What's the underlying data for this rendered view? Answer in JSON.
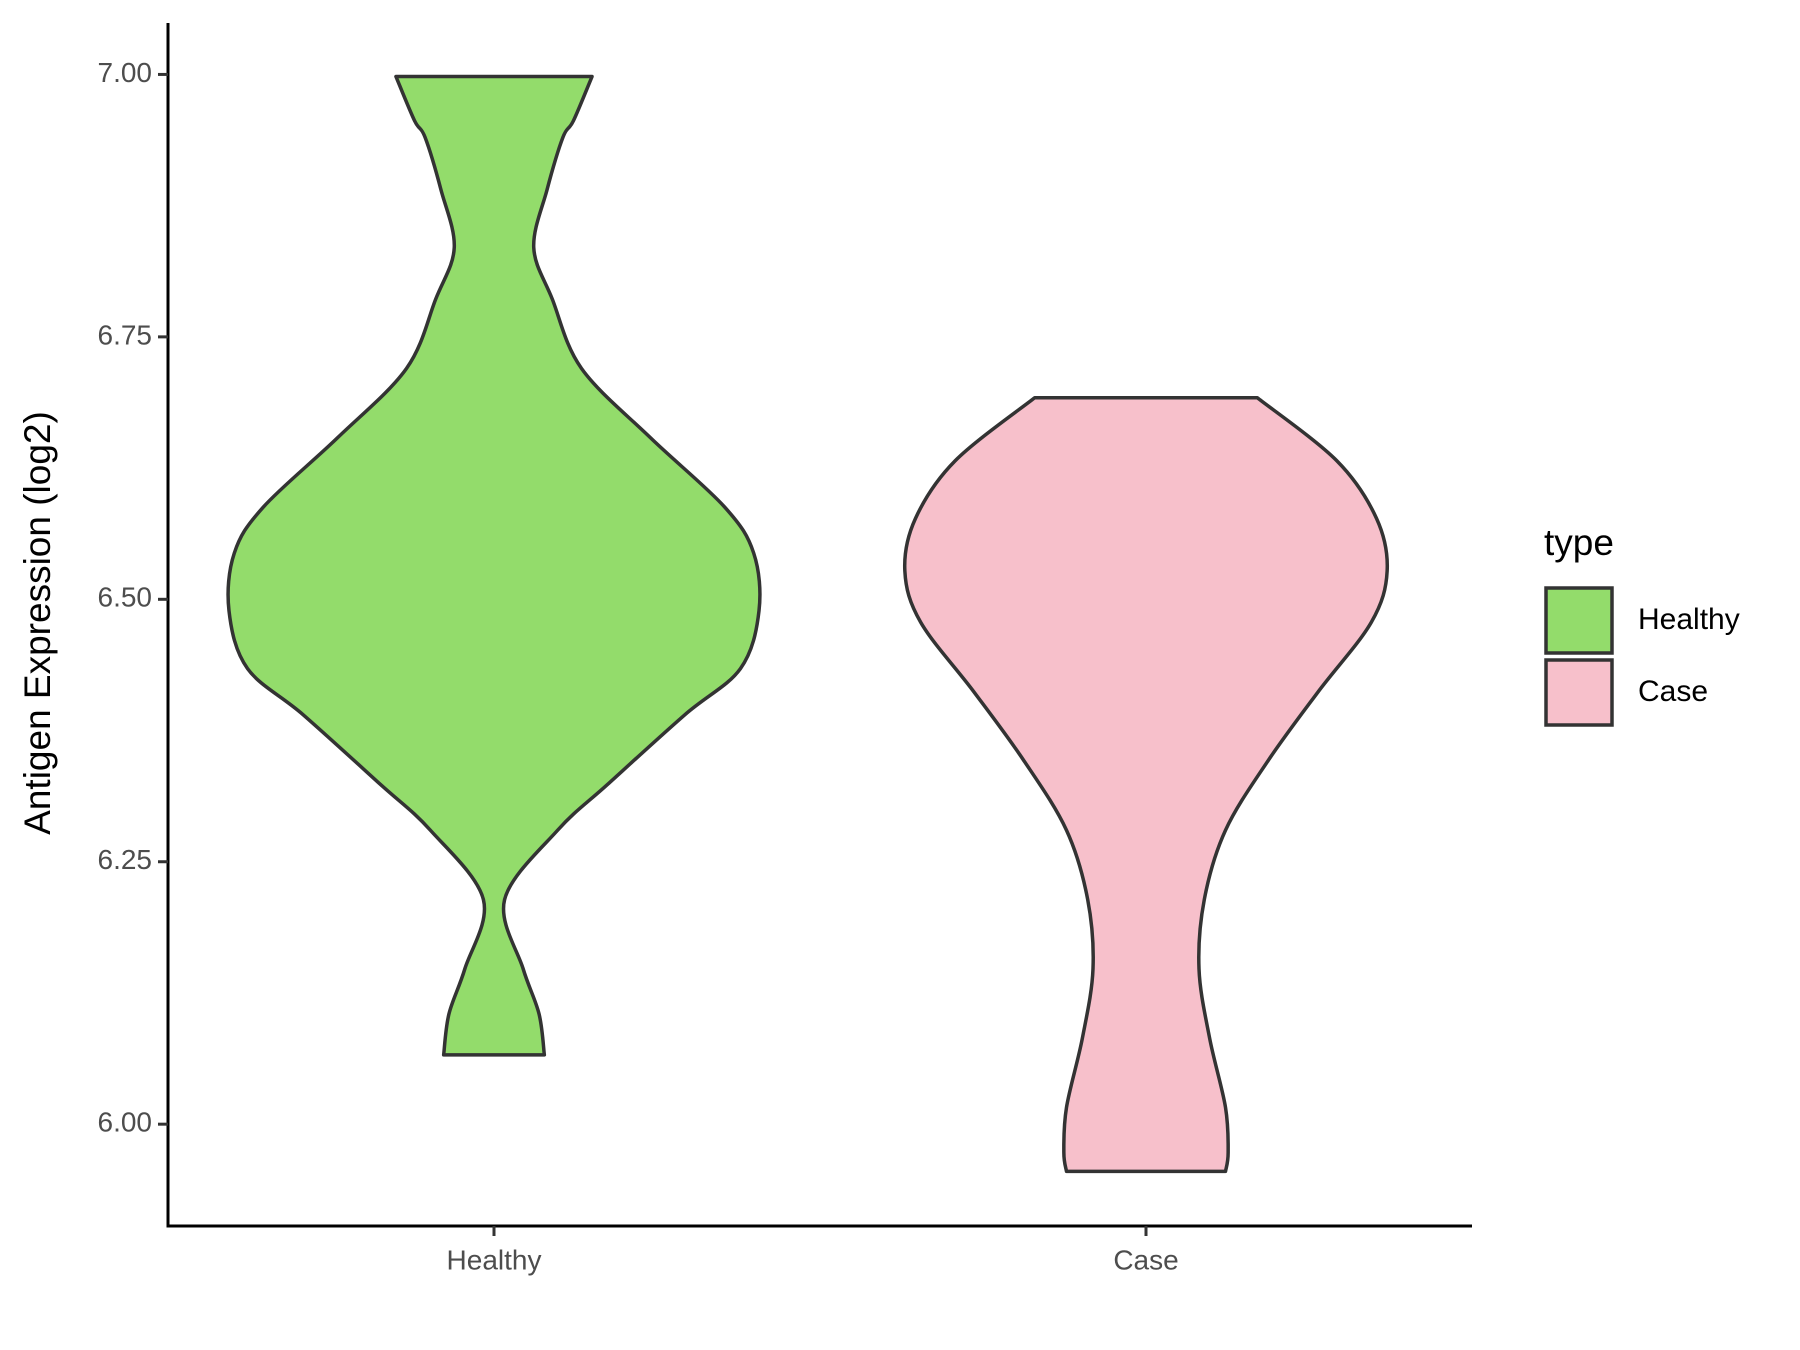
{
  "chart_data": {
    "type": "violin",
    "y_label": "Antigen Expression (log2)",
    "legend_title": "type",
    "categories": [
      "Healthy",
      "Case"
    ],
    "ylim": [
      5.903,
      7.049
    ],
    "yticks": [
      {
        "value": 6,
        "label": "6.00"
      },
      6.25,
      {
        "value": 6.5,
        "label": "6.50"
      },
      6.75,
      {
        "value": 7,
        "label": "7.00"
      }
    ],
    "legend_position": "right",
    "series": [
      {
        "name": "Healthy",
        "color": "#93dc6b",
        "y": [
          6.998,
          6.956,
          6.94,
          6.89,
          6.835,
          6.786,
          6.72,
          6.654,
          6.588,
          6.544,
          6.489,
          6.434,
          6.39,
          6.324,
          6.28,
          6.214,
          6.148,
          6.105,
          6.066
        ],
        "density": [
          0.37,
          0.3,
          0.26,
          0.2,
          0.15,
          0.22,
          0.33,
          0.59,
          0.87,
          0.98,
          1.0,
          0.93,
          0.72,
          0.43,
          0.24,
          0.04,
          0.11,
          0.17,
          0.19
        ]
      },
      {
        "name": "Case",
        "color": "#f7c0cb",
        "y": [
          6.692,
          6.632,
          6.577,
          6.527,
          6.478,
          6.412,
          6.346,
          6.28,
          6.214,
          6.148,
          6.082,
          6.016,
          5.973,
          5.955
        ],
        "density": [
          0.42,
          0.72,
          0.87,
          0.91,
          0.85,
          0.65,
          0.46,
          0.3,
          0.22,
          0.2,
          0.24,
          0.3,
          0.31,
          0.3
        ]
      }
    ]
  }
}
